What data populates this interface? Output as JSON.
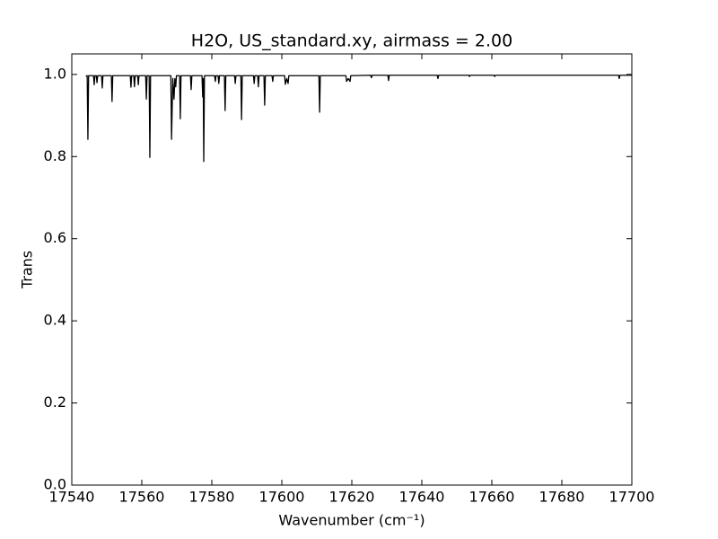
{
  "chart_data": {
    "type": "line",
    "title": "H2O, US_standard.xy, airmass = 2.00",
    "x_label": "Wavenumber (cm⁻¹)",
    "y_label": "Trans",
    "color": "#000000",
    "xlim": [
      17540,
      17700
    ],
    "ylim": [
      0,
      1.05
    ],
    "xticks": [
      17540,
      17560,
      17580,
      17600,
      17620,
      17640,
      17660,
      17680,
      17700
    ],
    "yticks": [
      {
        "value": 0,
        "label": "0.0"
      },
      0.2,
      0.4,
      0.6,
      0.8,
      {
        "value": 1,
        "label": "1.0"
      }
    ],
    "x": [
      17544.0,
      17544.4,
      17544.6,
      17544.8,
      17546.2,
      17546.4,
      17546.6,
      17547.0,
      17547.2,
      17547.4,
      17548.5,
      17548.7,
      17548.9,
      17551.3,
      17551.5,
      17551.7,
      17556.7,
      17556.9,
      17557.1,
      17557.7,
      17557.9,
      17558.1,
      17558.8,
      17559.0,
      17559.2,
      17561.1,
      17561.3,
      17561.5,
      17562.1,
      17562.3,
      17562.5,
      17568.3,
      17568.5,
      17568.85,
      17569.2,
      17569.45,
      17569.7,
      17569.9,
      17570.8,
      17571.0,
      17571.2,
      17573.9,
      17574.1,
      17574.3,
      17577.2,
      17577.4,
      17577.55,
      17577.7,
      17577.9,
      17580.8,
      17581.0,
      17581.2,
      17581.8,
      17582.0,
      17582.2,
      17583.6,
      17583.8,
      17584.0,
      17586.5,
      17586.7,
      17586.9,
      17588.3,
      17588.5,
      17588.7,
      17591.9,
      17592.1,
      17592.3,
      17593.1,
      17593.3,
      17593.5,
      17594.9,
      17595.1,
      17595.3,
      17597.2,
      17597.4,
      17597.6,
      17600.8,
      17601.0,
      17601.4,
      17601.8,
      17602.0,
      17610.6,
      17610.8,
      17611.0,
      17618.3,
      17618.5,
      17619.0,
      17619.5,
      17619.7,
      17625.4,
      17625.6,
      17625.8,
      17630.3,
      17630.5,
      17630.7,
      17644.4,
      17644.6,
      17644.8,
      17653.4,
      17653.6,
      17653.8,
      17660.6,
      17660.8,
      17661.0,
      17696.2,
      17696.4,
      17696.6,
      17700.0
    ],
    "values": [
      0.996,
      0.997,
      0.842,
      0.997,
      0.997,
      0.975,
      0.997,
      0.997,
      0.98,
      0.997,
      0.997,
      0.967,
      0.997,
      0.997,
      0.934,
      0.997,
      0.997,
      0.969,
      0.997,
      0.997,
      0.97,
      0.997,
      0.997,
      0.975,
      0.997,
      0.997,
      0.94,
      0.997,
      0.997,
      0.798,
      0.997,
      0.997,
      0.842,
      0.99,
      0.94,
      0.99,
      0.97,
      0.997,
      0.997,
      0.892,
      0.997,
      0.997,
      0.963,
      0.997,
      0.997,
      0.945,
      0.99,
      0.788,
      0.997,
      0.997,
      0.983,
      0.997,
      0.997,
      0.978,
      0.997,
      0.997,
      0.912,
      0.997,
      0.997,
      0.978,
      0.997,
      0.997,
      0.89,
      0.997,
      0.997,
      0.978,
      0.997,
      0.997,
      0.97,
      0.997,
      0.997,
      0.925,
      0.997,
      0.997,
      0.983,
      0.997,
      0.997,
      0.976,
      0.99,
      0.978,
      0.997,
      0.997,
      0.908,
      0.997,
      0.997,
      0.983,
      0.99,
      0.983,
      0.997,
      0.998,
      0.992,
      0.998,
      0.998,
      0.985,
      0.998,
      0.998,
      0.99,
      0.998,
      0.998,
      0.995,
      0.998,
      0.998,
      0.995,
      0.998,
      0.998,
      0.99,
      0.998,
      0.998
    ]
  }
}
